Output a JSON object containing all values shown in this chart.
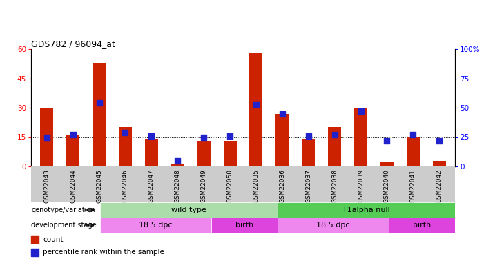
{
  "title": "GDS782 / 96094_at",
  "samples": [
    "GSM22043",
    "GSM22044",
    "GSM22045",
    "GSM22046",
    "GSM22047",
    "GSM22048",
    "GSM22049",
    "GSM22050",
    "GSM22035",
    "GSM22036",
    "GSM22037",
    "GSM22038",
    "GSM22039",
    "GSM22040",
    "GSM22041",
    "GSM22042"
  ],
  "counts": [
    30,
    16,
    53,
    20,
    14,
    1,
    13,
    13,
    58,
    27,
    14,
    20,
    30,
    2,
    15,
    3
  ],
  "percentiles": [
    25,
    27,
    54,
    29,
    26,
    5,
    25,
    26,
    53,
    45,
    26,
    27,
    47,
    22,
    27,
    22
  ],
  "bar_color": "#cc2200",
  "dot_color": "#2222cc",
  "ylim_left": [
    0,
    60
  ],
  "ylim_right": [
    0,
    100
  ],
  "yticks_left": [
    0,
    15,
    30,
    45,
    60
  ],
  "yticks_right": [
    0,
    25,
    50,
    75,
    100
  ],
  "ytick_labels_right": [
    "0",
    "25",
    "50",
    "75",
    "100%"
  ],
  "background_color": "#ffffff",
  "plot_bg_color": "#ffffff",
  "genotype_groups": [
    {
      "label": "wild type",
      "start": 0,
      "end": 7,
      "color": "#aaddaa"
    },
    {
      "label": "T1alpha null",
      "start": 8,
      "end": 15,
      "color": "#55cc55"
    }
  ],
  "stage_groups": [
    {
      "label": "18.5 dpc",
      "start": 0,
      "end": 4,
      "color": "#ee88ee"
    },
    {
      "label": "birth",
      "start": 5,
      "end": 7,
      "color": "#dd44dd"
    },
    {
      "label": "18.5 dpc",
      "start": 8,
      "end": 12,
      "color": "#ee88ee"
    },
    {
      "label": "birth",
      "start": 13,
      "end": 15,
      "color": "#dd44dd"
    }
  ],
  "legend_count_color": "#cc2200",
  "legend_pct_color": "#2222cc",
  "bar_width": 0.5,
  "dot_size": 30,
  "xtick_bg": "#cccccc"
}
